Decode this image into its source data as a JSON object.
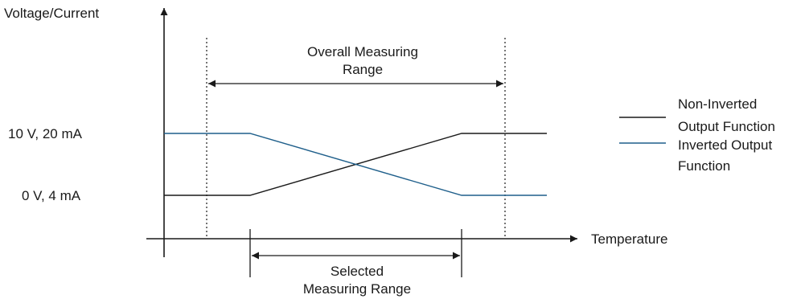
{
  "chart_data": {
    "type": "line",
    "title": "",
    "ylabel": "Voltage/Current",
    "xlabel": "Temperature",
    "y_levels": {
      "high": "10 V, 20 mA",
      "low": "0 V, 4 mA"
    },
    "ranges": {
      "overall": {
        "label_line1": "Overall Measuring",
        "label_line2": "Range"
      },
      "selected": {
        "label_line1": "Selected",
        "label_line2": "Measuring Range"
      }
    },
    "series": [
      {
        "name_line1": "Non-Inverted",
        "name_line2": "Output Function",
        "color": "#1a1a1a"
      },
      {
        "name_line1": "Inverted Output",
        "name_line2": "Function",
        "color": "#1f5f8b"
      }
    ],
    "legend_position": "right",
    "grid": false
  }
}
